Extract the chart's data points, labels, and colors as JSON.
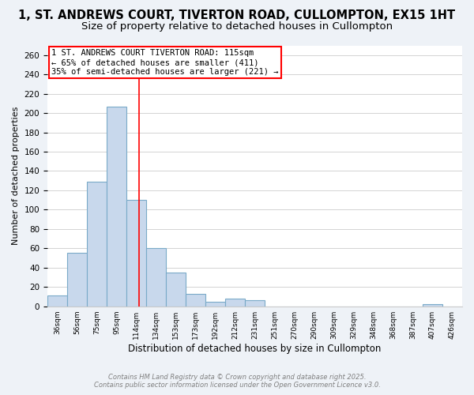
{
  "title": "1, ST. ANDREWS COURT, TIVERTON ROAD, CULLOMPTON, EX15 1HT",
  "subtitle": "Size of property relative to detached houses in Cullompton",
  "xlabel": "Distribution of detached houses by size in Cullompton",
  "ylabel": "Number of detached properties",
  "bar_values": [
    11,
    55,
    129,
    207,
    110,
    60,
    35,
    13,
    5,
    8,
    6,
    0,
    0,
    0,
    0,
    0,
    0,
    0,
    0,
    2,
    0
  ],
  "bar_labels": [
    "36sqm",
    "56sqm",
    "75sqm",
    "95sqm",
    "114sqm",
    "134sqm",
    "153sqm",
    "173sqm",
    "192sqm",
    "212sqm",
    "231sqm",
    "251sqm",
    "270sqm",
    "290sqm",
    "309sqm",
    "329sqm",
    "348sqm",
    "368sqm",
    "387sqm",
    "407sqm",
    "426sqm"
  ],
  "bin_edges": [
    27,
    46,
    65,
    84,
    103,
    122,
    141,
    160,
    179,
    198,
    217,
    236,
    255,
    274,
    293,
    312,
    331,
    350,
    369,
    388,
    407,
    426
  ],
  "bar_color": "#c8d8ec",
  "bar_edge_color": "#7aaac8",
  "vline_x": 115,
  "vline_color": "red",
  "ylim": [
    0,
    270
  ],
  "yticks": [
    0,
    20,
    40,
    60,
    80,
    100,
    120,
    140,
    160,
    180,
    200,
    220,
    240,
    260
  ],
  "annotation_title": "1 ST. ANDREWS COURT TIVERTON ROAD: 115sqm",
  "annotation_line1": "← 65% of detached houses are smaller (411)",
  "annotation_line2": "35% of semi-detached houses are larger (221) →",
  "footer1": "Contains HM Land Registry data © Crown copyright and database right 2025.",
  "footer2": "Contains public sector information licensed under the Open Government Licence v3.0.",
  "bg_color": "#eef2f7",
  "plot_bg_color": "#ffffff",
  "title_fontsize": 10.5,
  "subtitle_fontsize": 9.5
}
